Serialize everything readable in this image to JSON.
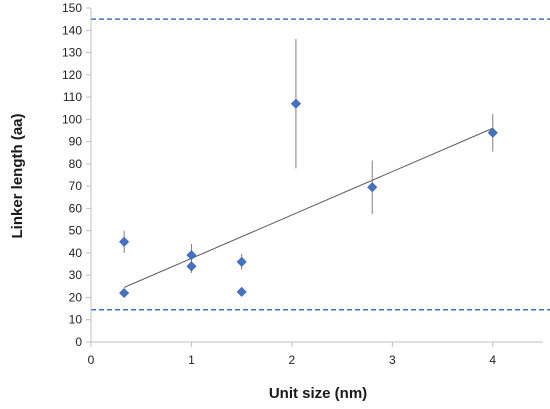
{
  "chart_data": {
    "type": "scatter",
    "title": "",
    "xlabel": "Unit size (nm)",
    "ylabel": "Linker length (aa)",
    "xlim": [
      0,
      4.5
    ],
    "ylim": [
      0,
      150
    ],
    "xticks": [
      0,
      1,
      2,
      3,
      4
    ],
    "yticks": [
      0,
      10,
      20,
      30,
      40,
      50,
      60,
      70,
      80,
      90,
      100,
      110,
      120,
      130,
      140,
      150
    ],
    "grid": false,
    "legend": "none",
    "points": [
      {
        "x": 0.33,
        "y": 45,
        "err": 5
      },
      {
        "x": 0.33,
        "y": 22,
        "err": 1.5
      },
      {
        "x": 1.0,
        "y": 39,
        "err": 5
      },
      {
        "x": 1.0,
        "y": 34,
        "err": 3
      },
      {
        "x": 1.5,
        "y": 36,
        "err": 3.5
      },
      {
        "x": 1.5,
        "y": 22.5,
        "err": 1
      },
      {
        "x": 2.04,
        "y": 107,
        "err": 29
      },
      {
        "x": 2.8,
        "y": 69.5,
        "err": 12
      },
      {
        "x": 4.0,
        "y": 94,
        "err": 8.5
      }
    ],
    "trendline": {
      "x": [
        0.33,
        4.0
      ],
      "y": [
        24.5,
        96
      ]
    },
    "reference_lines": [
      {
        "y": 145,
        "style": "dashed"
      },
      {
        "y": 14.5,
        "style": "dashed"
      }
    ],
    "colors": {
      "marker": "#4472C4",
      "reference_line": "#4472C4",
      "trendline": "#595959",
      "error_bar": "#7f7f7f",
      "axis": "#bfbfbf"
    }
  }
}
